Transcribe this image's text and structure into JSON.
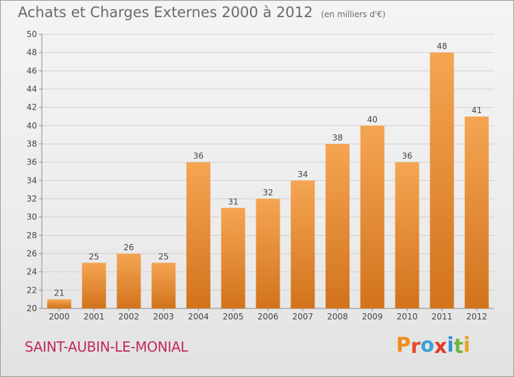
{
  "header": {
    "title": "Achats et Charges Externes 2000 à 2012",
    "unit": "(en milliers d'€)"
  },
  "footer": {
    "commune": "SAINT-AUBIN-LE-MONIAL",
    "logo_text": "Proxiti"
  },
  "colors": {
    "bar_top": "#f5a553",
    "bar_bottom": "#d2731c",
    "title": "#6a6a6a",
    "commune": "#c0285f",
    "logo_letters": [
      "#f08c1e",
      "#e64b2f",
      "#3aa0d8",
      "#e03a2a",
      "#2f8fd6",
      "#70b43c",
      "#e8a020"
    ]
  },
  "chart_data": {
    "type": "bar",
    "categories": [
      "2000",
      "2001",
      "2002",
      "2003",
      "2004",
      "2005",
      "2006",
      "2007",
      "2008",
      "2009",
      "2010",
      "2011",
      "2012"
    ],
    "values": [
      21,
      25,
      26,
      25,
      36,
      31,
      32,
      34,
      38,
      40,
      36,
      48,
      41
    ],
    "title": "Achats et Charges Externes 2000 à 2012",
    "xlabel": "",
    "ylabel": "",
    "ylim": [
      20,
      50
    ],
    "yticks": [
      20,
      22,
      24,
      26,
      28,
      30,
      32,
      34,
      36,
      38,
      40,
      42,
      44,
      46,
      48,
      50
    ],
    "grid": true,
    "data_labels": true
  }
}
